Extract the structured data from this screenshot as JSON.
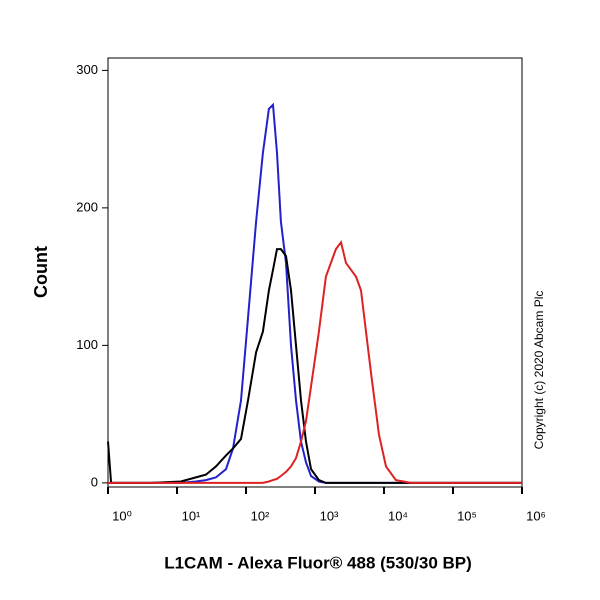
{
  "chart_data": {
    "type": "line",
    "xlabel": "L1CAM - Alexa Fluor® 488 (530/30 BP)",
    "ylabel": "Count",
    "annotation": "Copyright (c) 2020 Abcam Plc",
    "xscale": "log",
    "xlim": [
      1,
      1000000
    ],
    "ylim": [
      -3,
      309
    ],
    "xticks": [
      {
        "value": 1,
        "label": "10⁰"
      },
      {
        "value": 10,
        "label": "10¹"
      },
      {
        "value": 100,
        "label": "10²"
      },
      {
        "value": 1000,
        "label": "10³"
      },
      {
        "value": 10000,
        "label": "10⁴"
      },
      {
        "value": 100000,
        "label": "10⁵"
      },
      {
        "value": 1000000,
        "label": "10⁶"
      }
    ],
    "yticks": [
      0,
      100,
      200,
      300
    ],
    "x": [
      1,
      1.11,
      1.54,
      4.2,
      11.4,
      18.8,
      26.3,
      36.7,
      51.3,
      64.8,
      84.7,
      107,
      140,
      176,
      215,
      246,
      281,
      321,
      380,
      449,
      531,
      627,
      741,
      875,
      1140,
      1440,
      2010,
      2380,
      2810,
      3330,
      3930,
      4640,
      5480,
      6480,
      8470,
      10700,
      14900,
      24600,
      93500,
      1000000
    ],
    "series": [
      {
        "color": "#2222cc",
        "values": [
          0,
          0,
          0,
          0,
          0,
          1,
          2,
          4,
          10,
          25,
          60,
          120,
          190,
          240,
          272,
          275,
          240,
          190,
          160,
          100,
          60,
          30,
          15,
          5,
          1,
          0,
          0,
          0,
          0,
          0,
          0,
          0,
          0,
          0,
          0,
          0,
          0,
          0,
          0,
          0
        ]
      },
      {
        "color": "#000000",
        "values": [
          30,
          0,
          0,
          0,
          1,
          4,
          6,
          12,
          20,
          25,
          32,
          60,
          95,
          110,
          140,
          155,
          170,
          170,
          165,
          140,
          100,
          60,
          30,
          10,
          2,
          0,
          0,
          0,
          0,
          0,
          0,
          0,
          0,
          0,
          0,
          0,
          0,
          0,
          0,
          0
        ]
      },
      {
        "color": "#dd2222",
        "values": [
          0,
          0,
          0,
          0,
          0,
          0,
          0,
          0,
          0,
          0,
          0,
          0,
          0,
          0,
          1,
          2,
          3,
          5,
          8,
          12,
          18,
          30,
          45,
          70,
          110,
          150,
          170,
          175,
          160,
          155,
          150,
          140,
          110,
          80,
          35,
          12,
          2,
          0,
          0,
          0
        ]
      }
    ]
  }
}
